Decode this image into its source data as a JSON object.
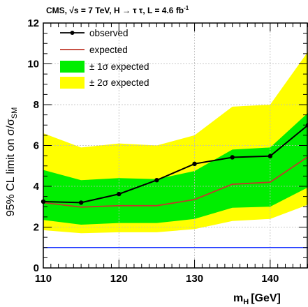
{
  "chart_data": {
    "type": "line",
    "title": "CMS, √s = 7 TeV, H → τ τ, L = 4.6 fb",
    "title_superscript": "-1",
    "xlabel": "m",
    "xlabel_subscript": "H",
    "xlabel_unit": "[GeV]",
    "ylabel": "95% CL limit on σ/σ",
    "ylabel_subscript": "SM",
    "xlim": [
      110,
      145
    ],
    "ylim": [
      0,
      12
    ],
    "xticks": [
      110,
      120,
      130,
      140
    ],
    "yticks": [
      0,
      2,
      4,
      6,
      8,
      10,
      12
    ],
    "grid": true,
    "legend_position": "top-left",
    "x": [
      110,
      115,
      120,
      125,
      130,
      135,
      140,
      145
    ],
    "series": [
      {
        "name": "observed",
        "values": [
          3.25,
          3.2,
          3.62,
          4.3,
          5.1,
          5.42,
          5.48,
          7.0
        ],
        "color": "#000000"
      },
      {
        "name": "expected",
        "values": [
          3.2,
          2.98,
          3.05,
          3.05,
          3.35,
          4.1,
          4.2,
          5.45
        ],
        "color": "#c0392b"
      }
    ],
    "bands": [
      {
        "name": "± 2σ expected",
        "color": "#ffff00",
        "upper": [
          6.6,
          5.9,
          6.1,
          6.0,
          6.5,
          7.9,
          8.0,
          10.6
        ],
        "lower": [
          1.85,
          1.7,
          1.75,
          1.75,
          1.9,
          2.3,
          2.4,
          3.1
        ]
      },
      {
        "name": "± 1σ expected",
        "color": "#00ee00",
        "upper": [
          4.8,
          4.3,
          4.4,
          4.35,
          4.75,
          5.8,
          5.9,
          7.6
        ],
        "lower": [
          2.35,
          2.12,
          2.2,
          2.2,
          2.4,
          2.95,
          3.0,
          3.95
        ]
      }
    ],
    "reference_line": {
      "y": 1,
      "color": "#1a33ff"
    },
    "legend": [
      "observed",
      "expected",
      "± 1σ expected",
      "± 2σ expected"
    ]
  }
}
